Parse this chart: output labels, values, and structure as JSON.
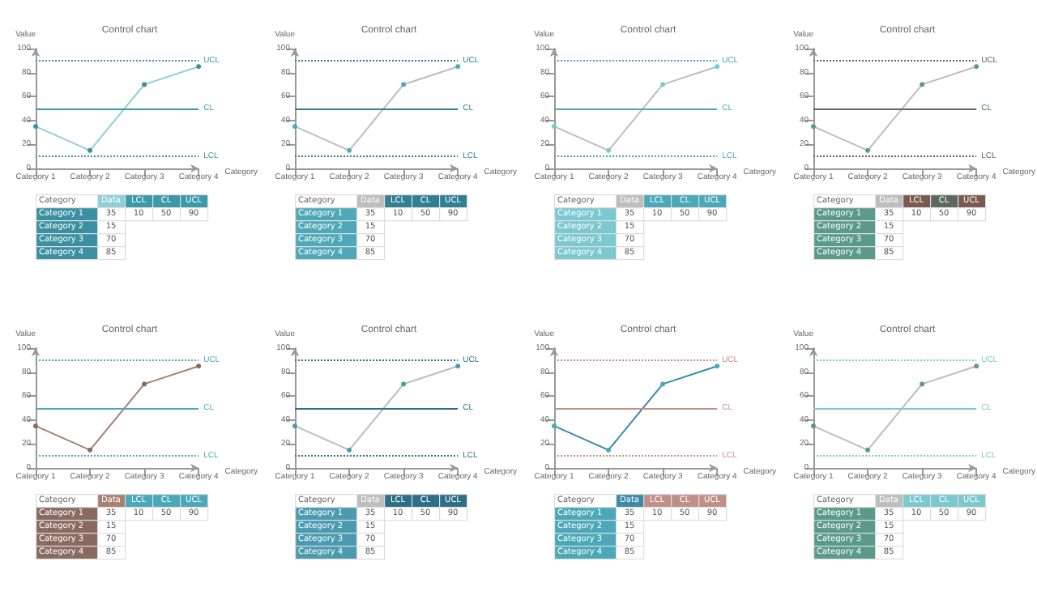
{
  "chart_data": [
    {
      "type": "line",
      "title": "Control chart",
      "xlabel": "Category",
      "ylabel": "Value",
      "categories": [
        "Category 1",
        "Category 2",
        "Category 3",
        "Category 4"
      ],
      "series": [
        {
          "name": "Data",
          "color": "#8fd0d8",
          "colors": [
            "#3a8fa0",
            "#3a8fa0",
            "#3a8fa0",
            "#3a8fa0"
          ],
          "values": [
            35,
            15,
            70,
            85
          ]
        }
      ],
      "ylim": [
        0,
        100
      ],
      "yticks": [
        0,
        20,
        40,
        60,
        80,
        100
      ],
      "ref_lines": [
        {
          "axis": "y",
          "value": 10,
          "label": "LCL",
          "color": "#3a9aaa",
          "line_style": "dotted"
        },
        {
          "axis": "y",
          "value": 50,
          "label": "CL",
          "color": "#3a9aaa",
          "line_style": "solid"
        },
        {
          "axis": "y",
          "value": 90,
          "label": "UCL",
          "color": "#3a9aaa",
          "line_style": "dotted"
        }
      ],
      "annotations": [
        "35",
        "15",
        "70",
        "85",
        "10",
        "50",
        "90"
      ],
      "marker": "circle",
      "grid": false
    },
    {
      "type": "line",
      "title": "Control chart",
      "xlabel": "Category",
      "ylabel": "Value",
      "categories": [
        "Category 1",
        "Category 2",
        "Category 3",
        "Category 4"
      ],
      "series": [
        {
          "name": "Data",
          "color": "#bdbdbd",
          "colors": [
            "#4fa8b8",
            "#4fa8b8",
            "#4fa8b8",
            "#4fa8b8"
          ],
          "values": [
            35,
            15,
            70,
            85
          ]
        }
      ],
      "ylim": [
        0,
        100
      ],
      "yticks": [
        0,
        20,
        40,
        60,
        80,
        100
      ],
      "ref_lines": [
        {
          "axis": "y",
          "value": 10,
          "label": "LCL",
          "color": "#2f7f95",
          "line_style": "dotted"
        },
        {
          "axis": "y",
          "value": 50,
          "label": "CL",
          "color": "#2f7f95",
          "line_style": "solid"
        },
        {
          "axis": "y",
          "value": 90,
          "label": "UCL",
          "color": "#2f7f95",
          "line_style": "dotted"
        }
      ],
      "annotations": [
        "35",
        "15",
        "70",
        "85",
        "10",
        "50",
        "90"
      ],
      "marker": "circle",
      "grid": false
    },
    {
      "type": "line",
      "title": "Control chart",
      "xlabel": "Category",
      "ylabel": "Value",
      "categories": [
        "Category 1",
        "Category 2",
        "Category 3",
        "Category 4"
      ],
      "series": [
        {
          "name": "Data",
          "color": "#bdbdbd",
          "colors": [
            "#7cc8d0",
            "#7cc8d0",
            "#7cc8d0",
            "#7cc8d0"
          ],
          "values": [
            35,
            15,
            70,
            85
          ]
        }
      ],
      "ylim": [
        0,
        100
      ],
      "yticks": [
        0,
        20,
        40,
        60,
        80,
        100
      ],
      "ref_lines": [
        {
          "axis": "y",
          "value": 10,
          "label": "LCL",
          "color": "#4aa8b8",
          "line_style": "dotted"
        },
        {
          "axis": "y",
          "value": 50,
          "label": "CL",
          "color": "#4aa8b8",
          "line_style": "solid"
        },
        {
          "axis": "y",
          "value": 90,
          "label": "UCL",
          "color": "#4aa8b8",
          "line_style": "dotted"
        }
      ],
      "annotations": [
        "35",
        "15",
        "70",
        "85",
        "10",
        "50",
        "90"
      ],
      "marker": "circle",
      "grid": false
    },
    {
      "type": "line",
      "title": "Control chart",
      "xlabel": "Category",
      "ylabel": "Value",
      "categories": [
        "Category 1",
        "Category 2",
        "Category 3",
        "Category 4"
      ],
      "series": [
        {
          "name": "Data",
          "color": "#bdbdbd",
          "colors": [
            "#5a9a8a",
            "#5a9a8a",
            "#5a9a8a",
            "#5a9a8a"
          ],
          "values": [
            35,
            15,
            70,
            85
          ]
        }
      ],
      "ylim": [
        0,
        100
      ],
      "yticks": [
        0,
        20,
        40,
        60,
        80,
        100
      ],
      "ref_lines": [
        {
          "axis": "y",
          "value": 10,
          "label": "LCL",
          "color": "#7a5a50",
          "line_style": "dotted"
        },
        {
          "axis": "y",
          "value": 50,
          "label": "CL",
          "color": "#5a6a60",
          "line_style": "solid"
        },
        {
          "axis": "y",
          "value": 90,
          "label": "UCL",
          "color": "#7a5a50",
          "line_style": "dotted"
        }
      ],
      "annotations": [
        "35",
        "15",
        "70",
        "85",
        "10",
        "50",
        "90"
      ],
      "marker": "circle",
      "grid": false
    },
    {
      "type": "line",
      "title": "Control chart",
      "xlabel": "Category",
      "ylabel": "Value",
      "categories": [
        "Category 1",
        "Category 2",
        "Category 3",
        "Category 4"
      ],
      "series": [
        {
          "name": "Data",
          "color": "#a88070",
          "colors": [
            "#8a6a60",
            "#8a6a60",
            "#8a6a60",
            "#8a6a60"
          ],
          "values": [
            35,
            15,
            70,
            85
          ]
        }
      ],
      "ylim": [
        0,
        100
      ],
      "yticks": [
        0,
        20,
        40,
        60,
        80,
        100
      ],
      "ref_lines": [
        {
          "axis": "y",
          "value": 10,
          "label": "LCL",
          "color": "#4aa8b8",
          "line_style": "dotted"
        },
        {
          "axis": "y",
          "value": 50,
          "label": "CL",
          "color": "#4aa8b8",
          "line_style": "solid"
        },
        {
          "axis": "y",
          "value": 90,
          "label": "UCL",
          "color": "#4aa8b8",
          "line_style": "dotted"
        }
      ],
      "annotations": [
        "35",
        "15",
        "70",
        "85",
        "10",
        "50",
        "90"
      ],
      "marker": "circle",
      "grid": false
    },
    {
      "type": "line",
      "title": "Control chart",
      "xlabel": "Category",
      "ylabel": "Value",
      "categories": [
        "Category 1",
        "Category 2",
        "Category 3",
        "Category 4"
      ],
      "series": [
        {
          "name": "Data",
          "color": "#bdbdbd",
          "colors": [
            "#4a9ab0",
            "#4a9ab0",
            "#4a9ab0",
            "#4a9ab0"
          ],
          "values": [
            35,
            15,
            70,
            85
          ]
        }
      ],
      "ylim": [
        0,
        100
      ],
      "yticks": [
        0,
        20,
        40,
        60,
        80,
        100
      ],
      "ref_lines": [
        {
          "axis": "y",
          "value": 10,
          "label": "LCL",
          "color": "#2f6f85",
          "line_style": "dotted"
        },
        {
          "axis": "y",
          "value": 50,
          "label": "CL",
          "color": "#2f6f85",
          "line_style": "solid"
        },
        {
          "axis": "y",
          "value": 90,
          "label": "UCL",
          "color": "#2f6f85",
          "line_style": "dotted"
        }
      ],
      "annotations": [
        "35",
        "15",
        "70",
        "85",
        "10",
        "50",
        "90"
      ],
      "marker": "circle",
      "grid": false
    },
    {
      "type": "line",
      "title": "Control chart",
      "xlabel": "Category",
      "ylabel": "Value",
      "categories": [
        "Category 1",
        "Category 2",
        "Category 3",
        "Category 4"
      ],
      "series": [
        {
          "name": "Data",
          "color": "#3a8aa8",
          "colors": [
            "#4aa8b8",
            "#4aa8b8",
            "#4aa8b8",
            "#4aa8b8"
          ],
          "values": [
            35,
            15,
            70,
            85
          ]
        }
      ],
      "ylim": [
        0,
        100
      ],
      "yticks": [
        0,
        20,
        40,
        60,
        80,
        100
      ],
      "ref_lines": [
        {
          "axis": "y",
          "value": 10,
          "label": "LCL",
          "color": "#c09088",
          "line_style": "dotted"
        },
        {
          "axis": "y",
          "value": 50,
          "label": "CL",
          "color": "#c09088",
          "line_style": "solid"
        },
        {
          "axis": "y",
          "value": 90,
          "label": "UCL",
          "color": "#c09088",
          "line_style": "dotted"
        }
      ],
      "annotations": [
        "35",
        "15",
        "70",
        "85",
        "10",
        "50",
        "90"
      ],
      "marker": "circle",
      "grid": false
    },
    {
      "type": "line",
      "title": "Control chart",
      "xlabel": "Category",
      "ylabel": "Value",
      "categories": [
        "Category 1",
        "Category 2",
        "Category 3",
        "Category 4"
      ],
      "series": [
        {
          "name": "Data",
          "color": "#bdbdbd",
          "colors": [
            "#5a9a8a",
            "#5a9a8a",
            "#5a9a8a",
            "#5a9a8a"
          ],
          "values": [
            35,
            15,
            70,
            85
          ]
        }
      ],
      "ylim": [
        0,
        100
      ],
      "yticks": [
        0,
        20,
        40,
        60,
        80,
        100
      ],
      "ref_lines": [
        {
          "axis": "y",
          "value": 10,
          "label": "LCL",
          "color": "#7cc8d0",
          "line_style": "dotted"
        },
        {
          "axis": "y",
          "value": 50,
          "label": "CL",
          "color": "#7cc8d0",
          "line_style": "solid"
        },
        {
          "axis": "y",
          "value": 90,
          "label": "UCL",
          "color": "#7cc8d0",
          "line_style": "dotted"
        }
      ],
      "annotations": [
        "35",
        "15",
        "70",
        "85",
        "10",
        "50",
        "90"
      ],
      "marker": "circle",
      "grid": false
    }
  ]
}
